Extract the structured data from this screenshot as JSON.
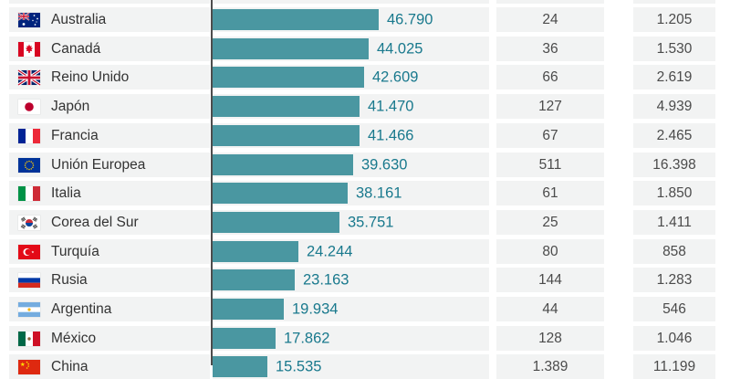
{
  "chart_data": {
    "type": "bar",
    "orientation": "horizontal",
    "cropped": "top and bottom rows partially cut off by viewport",
    "categories": [
      "Australia",
      "Canadá",
      "Reino Unido",
      "Japón",
      "Francia",
      "Unión Europea",
      "Italia",
      "Corea del Sur",
      "Turquía",
      "Rusia",
      "Argentina",
      "México",
      "China"
    ],
    "series": [
      {
        "name": "bar_values",
        "values": [
          46790,
          44025,
          42609,
          41470,
          41466,
          39630,
          38161,
          35751,
          24244,
          23163,
          19934,
          17862,
          15535
        ]
      },
      {
        "name": "numeric_column_1",
        "values": [
          24,
          36,
          66,
          127,
          67,
          511,
          61,
          25,
          80,
          144,
          44,
          128,
          1389
        ]
      },
      {
        "name": "numeric_column_2",
        "values": [
          1205,
          1530,
          2619,
          4939,
          2465,
          16398,
          1850,
          1411,
          858,
          1283,
          546,
          1046,
          11199
        ]
      }
    ],
    "value_labels_on_bars": true,
    "grid": false,
    "legend": false,
    "axis_baseline": "single dark vertical line at left of bars"
  },
  "table": {
    "rows": [
      {
        "country": "Australia",
        "flag": "australia",
        "flag_icon": "flag-australia-icon",
        "bar_label": "46.790",
        "bar_value": 46790,
        "col1": "24",
        "col2": "1.205"
      },
      {
        "country": "Canadá",
        "flag": "canada",
        "flag_icon": "flag-canada-icon",
        "bar_label": "44.025",
        "bar_value": 44025,
        "col1": "36",
        "col2": "1.530"
      },
      {
        "country": "Reino Unido",
        "flag": "uk",
        "flag_icon": "flag-uk-icon",
        "bar_label": "42.609",
        "bar_value": 42609,
        "col1": "66",
        "col2": "2.619"
      },
      {
        "country": "Japón",
        "flag": "japan",
        "flag_icon": "flag-japan-icon",
        "bar_label": "41.470",
        "bar_value": 41470,
        "col1": "127",
        "col2": "4.939"
      },
      {
        "country": "Francia",
        "flag": "france",
        "flag_icon": "flag-france-icon",
        "bar_label": "41.466",
        "bar_value": 41466,
        "col1": "67",
        "col2": "2.465"
      },
      {
        "country": "Unión Europea",
        "flag": "eu",
        "flag_icon": "flag-eu-icon",
        "bar_label": "39.630",
        "bar_value": 39630,
        "col1": "511",
        "col2": "16.398"
      },
      {
        "country": "Italia",
        "flag": "italy",
        "flag_icon": "flag-italy-icon",
        "bar_label": "38.161",
        "bar_value": 38161,
        "col1": "61",
        "col2": "1.850"
      },
      {
        "country": "Corea del Sur",
        "flag": "south_korea",
        "flag_icon": "flag-south-korea-icon",
        "bar_label": "35.751",
        "bar_value": 35751,
        "col1": "25",
        "col2": "1.411"
      },
      {
        "country": "Turquía",
        "flag": "turkey",
        "flag_icon": "flag-turkey-icon",
        "bar_label": "24.244",
        "bar_value": 24244,
        "col1": "80",
        "col2": "858"
      },
      {
        "country": "Rusia",
        "flag": "russia",
        "flag_icon": "flag-russia-icon",
        "bar_label": "23.163",
        "bar_value": 23163,
        "col1": "144",
        "col2": "1.283"
      },
      {
        "country": "Argentina",
        "flag": "argentina",
        "flag_icon": "flag-argentina-icon",
        "bar_label": "19.934",
        "bar_value": 19934,
        "col1": "44",
        "col2": "546"
      },
      {
        "country": "México",
        "flag": "mexico",
        "flag_icon": "flag-mexico-icon",
        "bar_label": "17.862",
        "bar_value": 17862,
        "col1": "128",
        "col2": "1.046"
      },
      {
        "country": "China",
        "flag": "china",
        "flag_icon": "flag-china-icon",
        "bar_label": "15.535",
        "bar_value": 15535,
        "col1": "1.389",
        "col2": "11.199"
      }
    ]
  },
  "style": {
    "bar_color": "#4A97A1",
    "bar_label_color": "#19798D",
    "axis_color": "#4D4D4D",
    "cell_bg": "#F2F3F3",
    "country_text_color": "#333333",
    "number_text_color": "#4B4B4B"
  }
}
